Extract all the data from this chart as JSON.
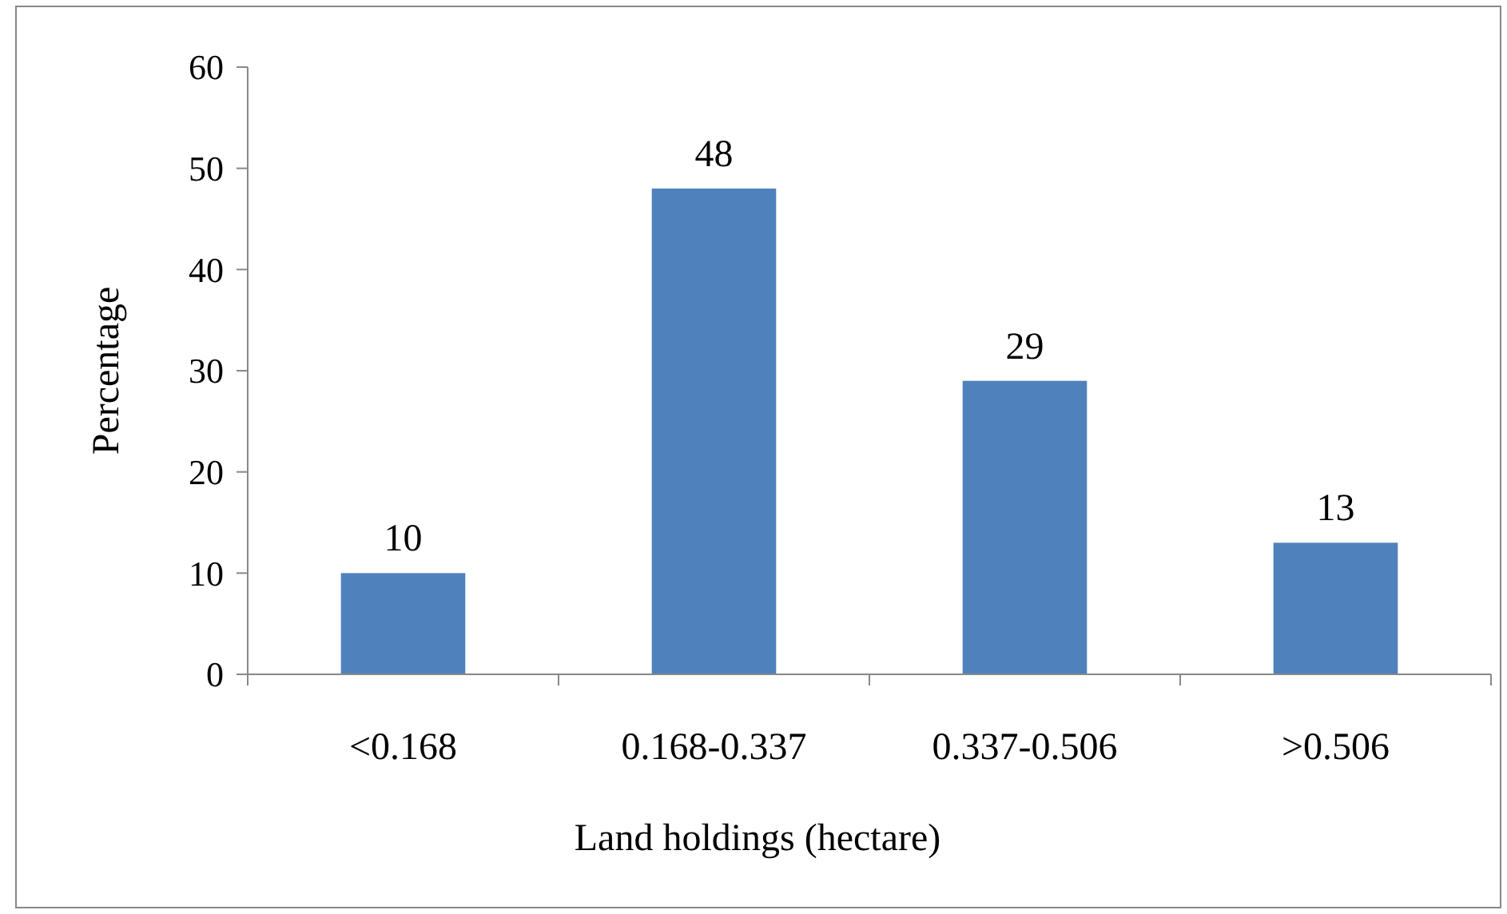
{
  "chart_data": {
    "type": "bar",
    "xlabel": "Land holdings (hectare)",
    "ylabel": "Percentage",
    "categories": [
      "<0.168",
      "0.168-0.337",
      "0.337-0.506",
      ">0.506"
    ],
    "values": [
      10,
      48,
      29,
      13
    ],
    "color": "#4f81bd",
    "ylim": [
      0,
      60
    ],
    "yticks": [
      0,
      10,
      20,
      30,
      40,
      50,
      60
    ],
    "grid": false,
    "data_labels": true
  }
}
